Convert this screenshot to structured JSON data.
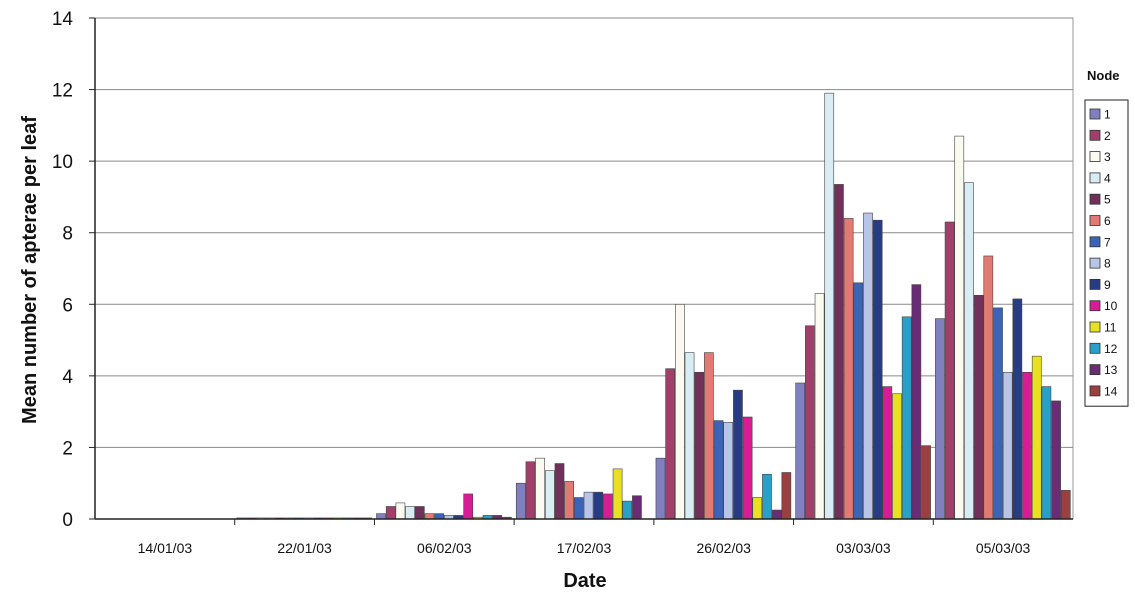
{
  "chart_data": {
    "type": "bar",
    "title": "",
    "xlabel": "Date",
    "ylabel": "Mean number of apterae per leaf",
    "ylim": [
      0,
      14
    ],
    "yticks": [
      0,
      2,
      4,
      6,
      8,
      10,
      12,
      14
    ],
    "grid": true,
    "legend_position": "right",
    "legend_title": "Node",
    "categories": [
      "14/01/03",
      "22/01/03",
      "06/02/03",
      "17/02/03",
      "26/02/03",
      "03/03/03",
      "05/03/03"
    ],
    "series": [
      {
        "name": "1",
        "color": "#8080c0",
        "values": [
          0,
          0.03,
          0.15,
          1.0,
          1.7,
          3.8,
          5.6
        ]
      },
      {
        "name": "2",
        "color": "#a0406a",
        "values": [
          0,
          0.03,
          0.35,
          1.6,
          4.2,
          5.4,
          8.3
        ]
      },
      {
        "name": "3",
        "color": "#fafaf0",
        "values": [
          0,
          0.03,
          0.45,
          1.7,
          6.0,
          6.3,
          10.7
        ]
      },
      {
        "name": "4",
        "color": "#d8ecf4",
        "values": [
          0,
          0.03,
          0.35,
          1.35,
          4.65,
          11.9,
          9.4
        ]
      },
      {
        "name": "5",
        "color": "#70305a",
        "values": [
          0,
          0.03,
          0.35,
          1.55,
          4.1,
          9.35,
          6.25
        ]
      },
      {
        "name": "6",
        "color": "#e07a72",
        "values": [
          0,
          0.03,
          0.15,
          1.05,
          4.65,
          8.4,
          7.35
        ]
      },
      {
        "name": "7",
        "color": "#3a64b8",
        "values": [
          0,
          0.03,
          0.15,
          0.6,
          2.75,
          6.6,
          5.9
        ]
      },
      {
        "name": "8",
        "color": "#b8c4e8",
        "values": [
          0,
          0.03,
          0.1,
          0.75,
          2.7,
          8.55,
          4.1
        ]
      },
      {
        "name": "9",
        "color": "#283c84",
        "values": [
          0,
          0.03,
          0.1,
          0.75,
          3.6,
          8.35,
          6.15
        ]
      },
      {
        "name": "10",
        "color": "#d81c96",
        "values": [
          0,
          0.03,
          0.7,
          0.7,
          2.85,
          3.7,
          4.1
        ]
      },
      {
        "name": "11",
        "color": "#e8e020",
        "values": [
          0,
          0.03,
          0.05,
          1.4,
          0.6,
          3.5,
          4.55
        ]
      },
      {
        "name": "12",
        "color": "#28a0c8",
        "values": [
          0,
          0.03,
          0.1,
          0.5,
          1.25,
          5.65,
          3.7
        ]
      },
      {
        "name": "13",
        "color": "#6a2c74",
        "values": [
          0,
          0.03,
          0.1,
          0.65,
          0.25,
          6.55,
          3.3
        ]
      },
      {
        "name": "14",
        "color": "#9a4040",
        "values": [
          0,
          0.03,
          0.05,
          0.0,
          1.3,
          2.05,
          0.8
        ]
      }
    ]
  }
}
